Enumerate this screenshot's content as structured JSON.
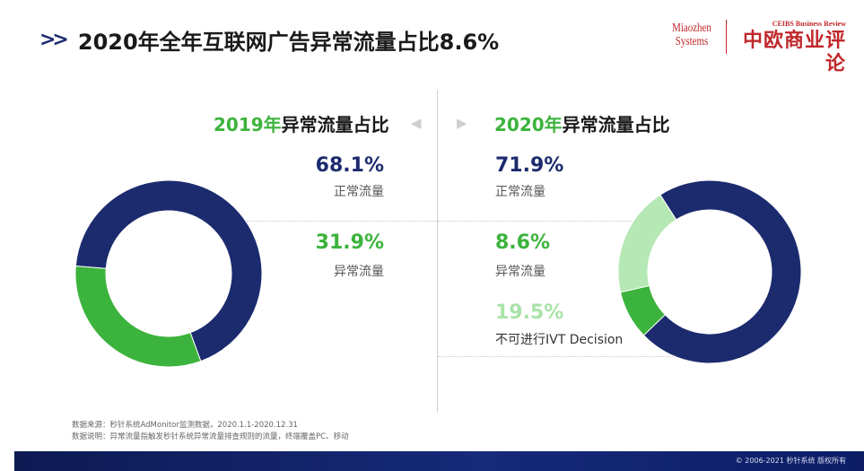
{
  "header": {
    "title": "2020年全年互联网广告异常流量占比8.6%",
    "logo_miaozhen_line1": "Miaozhen",
    "logo_miaozhen_line2": "Systems",
    "logo_ceibs_en": "CEIBS Business Review",
    "logo_ceibs_cn": "中欧商业评论"
  },
  "chart_data": [
    {
      "type": "pie",
      "title_year": "2019年",
      "title_rest": "异常流量占比",
      "slices": [
        {
          "label": "正常流量",
          "value": 68.1,
          "value_text": "68.1%",
          "color": "#1c2b6e"
        },
        {
          "label": "异常流量",
          "value": 31.9,
          "value_text": "31.9%",
          "color": "#3cb33c"
        }
      ]
    },
    {
      "type": "pie",
      "title_year": "2020年",
      "title_rest": "异常流量占比",
      "slices": [
        {
          "label": "正常流量",
          "value": 71.9,
          "value_text": "71.9%",
          "color": "#1c2b6e"
        },
        {
          "label": "异常流量",
          "value": 8.6,
          "value_text": "8.6%",
          "color": "#3cb33c"
        },
        {
          "label": "不可进行IVT Decision",
          "value": 19.5,
          "value_text": "19.5%",
          "color": "#b6e8b6"
        }
      ]
    }
  ],
  "notes": {
    "line1": "数据来源：秒针系统AdMonitor监测数据，2020.1.1-2020.12.31",
    "line2": "数据说明：异常流量指触发秒针系统异常流量排查规则的流量，终端覆盖PC、移动"
  },
  "footer": {
    "copyright": "© 2006-2021 秒针系统 版权所有"
  },
  "colors": {
    "navy": "#1c2b6e",
    "green": "#3cb33c",
    "light_green": "#b6e8b6"
  }
}
